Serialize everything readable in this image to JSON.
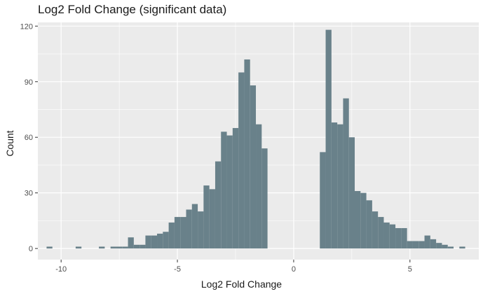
{
  "chart_data": {
    "type": "bar",
    "title": "Log2 Fold Change (significant data)",
    "xlabel": "Log2 Fold Change",
    "ylabel": "Count",
    "xlim": [
      -11.0,
      7.96
    ],
    "ylim": [
      -6,
      122
    ],
    "x_ticks": [
      -10,
      -5,
      0,
      5
    ],
    "y_ticks": [
      0,
      30,
      60,
      90,
      120
    ],
    "bin_width": 0.25,
    "grid": true,
    "bar_color": "#69818a",
    "panel_background": "#ebebeb",
    "grid_color": "#ffffff",
    "bins": [
      {
        "x": -10.5,
        "count": 1
      },
      {
        "x": -9.25,
        "count": 1
      },
      {
        "x": -8.25,
        "count": 1
      },
      {
        "x": -7.75,
        "count": 1
      },
      {
        "x": -7.5,
        "count": 1
      },
      {
        "x": -7.25,
        "count": 1
      },
      {
        "x": -7.0,
        "count": 6
      },
      {
        "x": -6.75,
        "count": 2
      },
      {
        "x": -6.5,
        "count": 2
      },
      {
        "x": -6.25,
        "count": 7
      },
      {
        "x": -6.0,
        "count": 7
      },
      {
        "x": -5.75,
        "count": 8
      },
      {
        "x": -5.5,
        "count": 9
      },
      {
        "x": -5.25,
        "count": 14
      },
      {
        "x": -5.0,
        "count": 17
      },
      {
        "x": -4.75,
        "count": 17
      },
      {
        "x": -4.5,
        "count": 21
      },
      {
        "x": -4.25,
        "count": 24
      },
      {
        "x": -4.0,
        "count": 20
      },
      {
        "x": -3.75,
        "count": 34
      },
      {
        "x": -3.5,
        "count": 32
      },
      {
        "x": -3.25,
        "count": 47
      },
      {
        "x": -3.0,
        "count": 63
      },
      {
        "x": -2.75,
        "count": 61
      },
      {
        "x": -2.5,
        "count": 65
      },
      {
        "x": -2.25,
        "count": 95
      },
      {
        "x": -2.0,
        "count": 102
      },
      {
        "x": -1.75,
        "count": 88
      },
      {
        "x": -1.5,
        "count": 67
      },
      {
        "x": -1.25,
        "count": 54
      },
      {
        "x": 1.25,
        "count": 52
      },
      {
        "x": 1.5,
        "count": 118
      },
      {
        "x": 1.75,
        "count": 68
      },
      {
        "x": 2.0,
        "count": 67
      },
      {
        "x": 2.25,
        "count": 81
      },
      {
        "x": 2.5,
        "count": 60
      },
      {
        "x": 2.75,
        "count": 31
      },
      {
        "x": 3.0,
        "count": 30
      },
      {
        "x": 3.25,
        "count": 26
      },
      {
        "x": 3.5,
        "count": 20
      },
      {
        "x": 3.75,
        "count": 17
      },
      {
        "x": 4.0,
        "count": 14
      },
      {
        "x": 4.25,
        "count": 13
      },
      {
        "x": 4.5,
        "count": 11
      },
      {
        "x": 4.75,
        "count": 11
      },
      {
        "x": 5.0,
        "count": 4
      },
      {
        "x": 5.25,
        "count": 4
      },
      {
        "x": 5.5,
        "count": 4
      },
      {
        "x": 5.75,
        "count": 7
      },
      {
        "x": 6.0,
        "count": 5
      },
      {
        "x": 6.25,
        "count": 3
      },
      {
        "x": 6.5,
        "count": 2
      },
      {
        "x": 6.75,
        "count": 1
      },
      {
        "x": 7.25,
        "count": 1
      }
    ]
  }
}
